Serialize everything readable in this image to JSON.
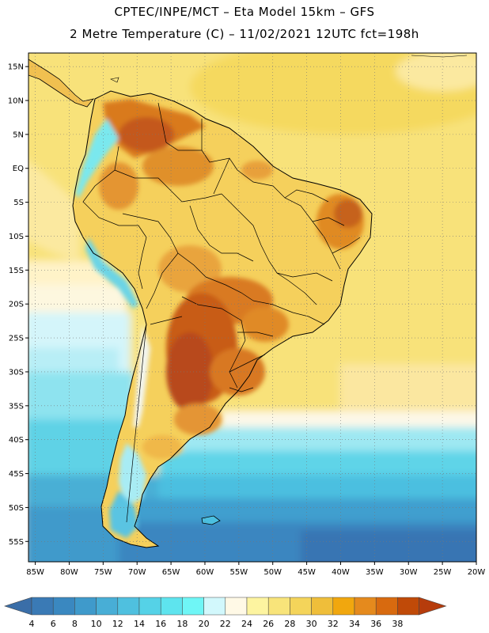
{
  "title": {
    "line1": "CPTEC/INPE/MCT –  Eta Model 15km – GFS",
    "line2": "2 Metre Temperature (C) – 11/02/2021 12UTC fct=198h"
  },
  "map": {
    "lon_range": [
      -86,
      -20
    ],
    "lat_range": [
      -58,
      17
    ],
    "lat_ticks": [
      {
        "value": 15,
        "label": "15N"
      },
      {
        "value": 10,
        "label": "10N"
      },
      {
        "value": 5,
        "label": "5N"
      },
      {
        "value": 0,
        "label": "EQ"
      },
      {
        "value": -5,
        "label": "5S"
      },
      {
        "value": -10,
        "label": "10S"
      },
      {
        "value": -15,
        "label": "15S"
      },
      {
        "value": -20,
        "label": "20S"
      },
      {
        "value": -25,
        "label": "25S"
      },
      {
        "value": -30,
        "label": "30S"
      },
      {
        "value": -35,
        "label": "35S"
      },
      {
        "value": -40,
        "label": "40S"
      },
      {
        "value": -45,
        "label": "45S"
      },
      {
        "value": -50,
        "label": "50S"
      },
      {
        "value": -55,
        "label": "55S"
      }
    ],
    "lon_ticks": [
      {
        "value": -85,
        "label": "85W"
      },
      {
        "value": -80,
        "label": "80W"
      },
      {
        "value": -75,
        "label": "75W"
      },
      {
        "value": -70,
        "label": "70W"
      },
      {
        "value": -65,
        "label": "65W"
      },
      {
        "value": -60,
        "label": "60W"
      },
      {
        "value": -55,
        "label": "55W"
      },
      {
        "value": -50,
        "label": "50W"
      },
      {
        "value": -45,
        "label": "45W"
      },
      {
        "value": -40,
        "label": "40W"
      },
      {
        "value": -35,
        "label": "35W"
      },
      {
        "value": -30,
        "label": "30W"
      },
      {
        "value": -25,
        "label": "25W"
      },
      {
        "value": -20,
        "label": "20W"
      }
    ]
  },
  "colorbar": {
    "labels": [
      "4",
      "6",
      "8",
      "10",
      "12",
      "14",
      "16",
      "18",
      "20",
      "22",
      "24",
      "26",
      "28",
      "30",
      "32",
      "34",
      "36",
      "38"
    ],
    "colors": [
      "#3a7ab5",
      "#3a88c0",
      "#3f9acb",
      "#48aed6",
      "#4fc0df",
      "#55d2e7",
      "#5ee4ee",
      "#6ff6f6",
      "#d2f8fc",
      "#fff9e6",
      "#fdf4a0",
      "#f8e47a",
      "#f4d45a",
      "#efbe3a",
      "#f1a70e",
      "#e58a1d",
      "#d86a0f",
      "#c04a08"
    ],
    "low_color": "#3a6ea8",
    "high_color": "#b63c0c"
  }
}
